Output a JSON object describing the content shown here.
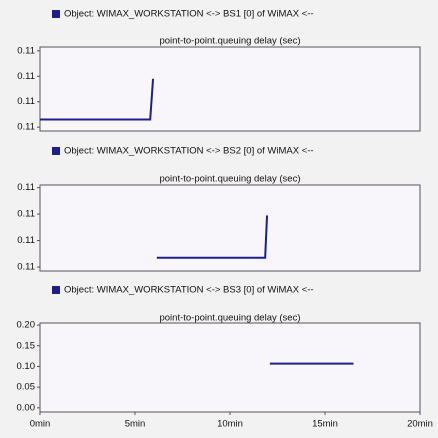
{
  "chart_data": [
    {
      "type": "line",
      "title": "point-to-point.queuing delay (sec)",
      "x": [
        0,
        5.8,
        5.95
      ],
      "series": [
        {
          "name": "Object: WIMAX_WORKSTATION <-> BS1 [0] of WiMAX <--",
          "color": "#1e1e8c",
          "values": [
            0.1086,
            0.1086,
            0.1118
          ]
        }
      ],
      "xlim": [
        0,
        20
      ],
      "ylim": [
        0.1077,
        0.1143
      ],
      "yticks": [
        {
          "value": 0.114,
          "label": "0.11"
        },
        {
          "value": 0.112,
          "label": "0.11"
        },
        {
          "value": 0.11,
          "label": "0.11"
        },
        {
          "value": 0.108,
          "label": "0.11"
        }
      ]
    },
    {
      "type": "line",
      "title": "point-to-point.queuing delay (sec)",
      "x": [
        6.15,
        11.85,
        11.95
      ],
      "series": [
        {
          "name": "Object: WIMAX_WORKSTATION <-> BS2 [0] of WiMAX <--",
          "color": "#1e1e8c",
          "values": [
            0.1087,
            0.1087,
            0.1119
          ]
        }
      ],
      "xlim": [
        0,
        20
      ],
      "ylim": [
        0.1077,
        0.1142
      ],
      "yticks": [
        {
          "value": 0.114,
          "label": "0.11"
        },
        {
          "value": 0.112,
          "label": "0.11"
        },
        {
          "value": 0.11,
          "label": "0.11"
        },
        {
          "value": 0.108,
          "label": "0.11"
        }
      ]
    },
    {
      "type": "line",
      "title": "point-to-point.queuing delay (sec)",
      "x": [
        12.1,
        16.5
      ],
      "series": [
        {
          "name": "Object: WIMAX_WORKSTATION <-> BS3 [0] of WiMAX <--",
          "color": "#1e1e8c",
          "values": [
            0.107,
            0.107
          ]
        }
      ],
      "xlim": [
        0,
        20
      ],
      "ylim": [
        -0.01,
        0.205
      ],
      "yticks": [
        {
          "value": 0.2,
          "label": "0.20"
        },
        {
          "value": 0.15,
          "label": "0.15"
        },
        {
          "value": 0.1,
          "label": "0.10"
        },
        {
          "value": 0.05,
          "label": "0.05"
        },
        {
          "value": 0,
          "label": "0.00"
        }
      ],
      "xticks": [
        {
          "value": 0,
          "label": "0min"
        },
        {
          "value": 5,
          "label": "5min"
        },
        {
          "value": 10,
          "label": "10min"
        },
        {
          "value": 15,
          "label": "15min"
        },
        {
          "value": 20,
          "label": "20min"
        }
      ]
    }
  ]
}
